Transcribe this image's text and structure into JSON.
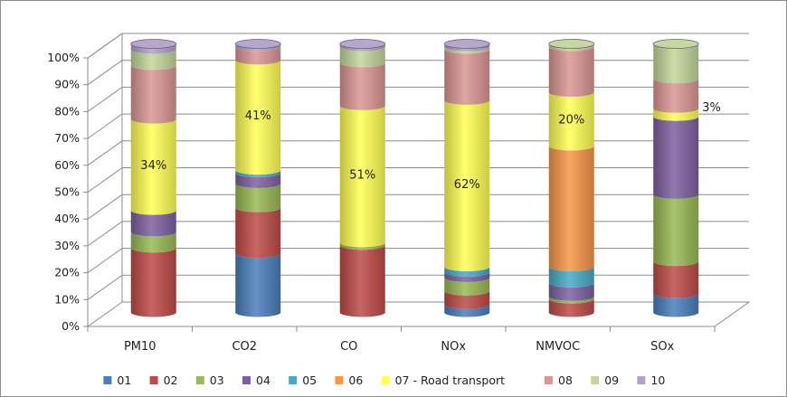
{
  "chart_data": {
    "type": "bar",
    "stacked": true,
    "percent_stacked": true,
    "style": "3d-cylinder",
    "categories": [
      "PM10",
      "CO2",
      "CO",
      "NOx",
      "NMVOC",
      "SOx"
    ],
    "ylim": [
      0,
      100
    ],
    "y_ticks": [
      "0%",
      "10%",
      "20%",
      "30%",
      "40%",
      "50%",
      "60%",
      "70%",
      "80%",
      "90%",
      "100%"
    ],
    "grid": true,
    "legend_position": "bottom",
    "series": [
      {
        "name": "01",
        "color": "#4a7ebb",
        "values": [
          0,
          22,
          0,
          3,
          0,
          7
        ]
      },
      {
        "name": "02",
        "color": "#be4b48",
        "values": [
          24,
          17,
          25,
          5,
          5,
          12
        ]
      },
      {
        "name": "03",
        "color": "#98b954",
        "values": [
          6,
          9,
          1,
          5,
          1,
          25
        ]
      },
      {
        "name": "04",
        "color": "#7d60a0",
        "values": [
          8,
          4,
          0,
          2,
          5,
          29
        ]
      },
      {
        "name": "05",
        "color": "#46aac5",
        "values": [
          0,
          1,
          0,
          2,
          6,
          0
        ]
      },
      {
        "name": "06",
        "color": "#f79646",
        "values": [
          0,
          0,
          0,
          0,
          45,
          0
        ]
      },
      {
        "name": "07 - Road transport",
        "color": "#ffff55",
        "values": [
          34,
          41,
          51,
          62,
          20,
          3
        ]
      },
      {
        "name": "08",
        "color": "#da9694",
        "values": [
          20,
          5,
          16,
          19,
          17,
          11
        ]
      },
      {
        "name": "09",
        "color": "#c3d69b",
        "values": [
          6,
          0,
          6,
          1,
          1,
          13
        ]
      },
      {
        "name": "10",
        "color": "#b3a2c7",
        "values": [
          2,
          1,
          1,
          1,
          0,
          0
        ]
      }
    ],
    "data_labels": [
      {
        "category": "PM10",
        "series": "07 - Road transport",
        "text": "34%"
      },
      {
        "category": "CO2",
        "series": "07 - Road transport",
        "text": "41%"
      },
      {
        "category": "CO",
        "series": "07 - Road transport",
        "text": "51%"
      },
      {
        "category": "NOx",
        "series": "07 - Road transport",
        "text": "62%"
      },
      {
        "category": "NMVOC",
        "series": "07 - Road transport",
        "text": "20%"
      },
      {
        "category": "SOx",
        "series": "07 - Road transport",
        "text": "3%",
        "outside": true
      }
    ]
  }
}
